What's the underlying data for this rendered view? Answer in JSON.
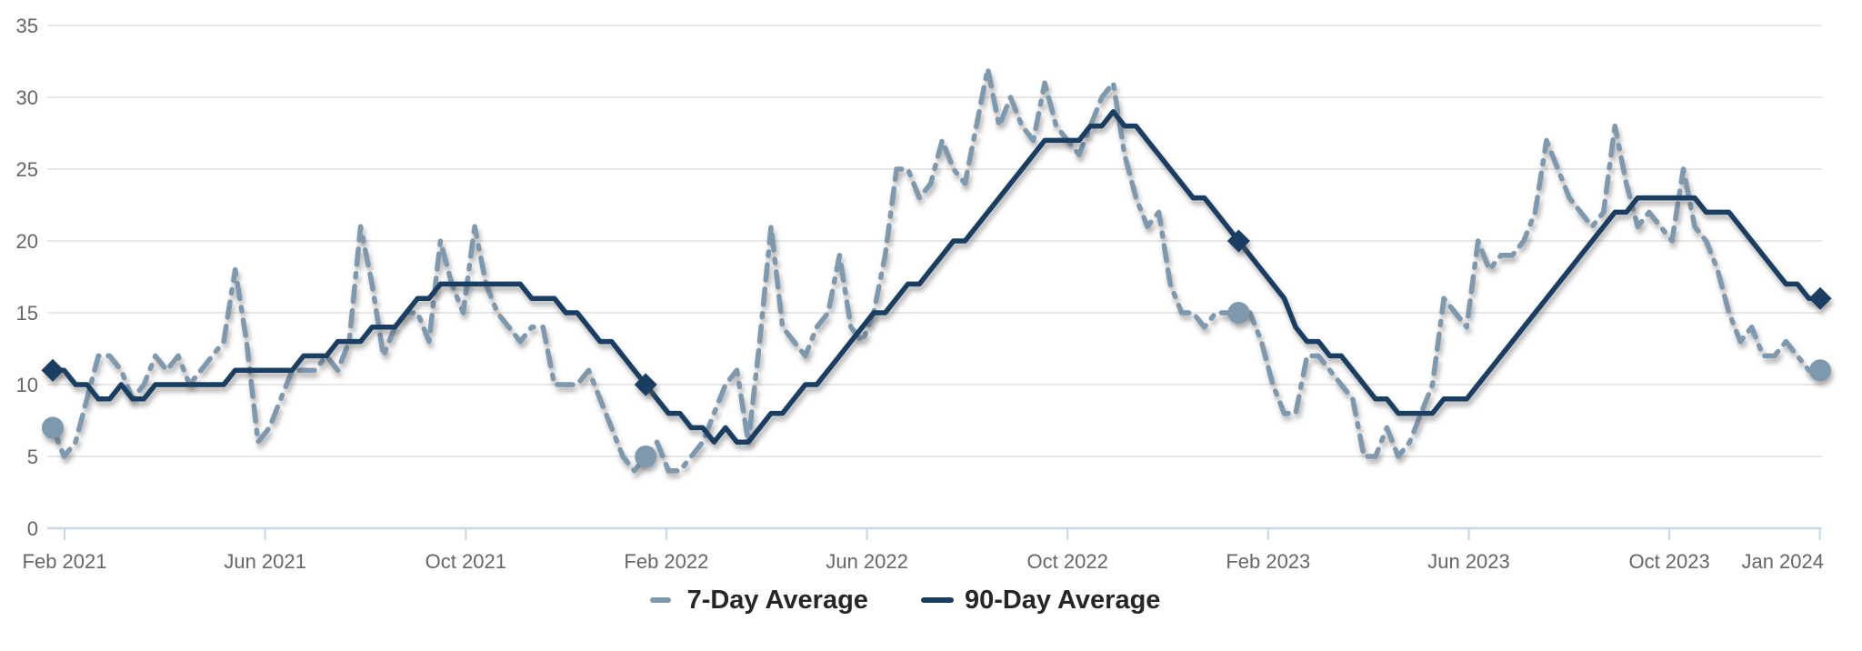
{
  "chart_data": {
    "type": "line",
    "title": "",
    "x_ticks": [
      {
        "label": "Feb 2021",
        "month": 0
      },
      {
        "label": "Jun 2021",
        "month": 4
      },
      {
        "label": "Oct 2021",
        "month": 8
      },
      {
        "label": "Feb 2022",
        "month": 12
      },
      {
        "label": "Jun 2022",
        "month": 16
      },
      {
        "label": "Oct 2022",
        "month": 20
      },
      {
        "label": "Feb 2023",
        "month": 24
      },
      {
        "label": "Jun 2023",
        "month": 28
      },
      {
        "label": "Oct 2023",
        "month": 32
      },
      {
        "label": "Jan 2024",
        "month": 35
      }
    ],
    "y_ticks": [
      0,
      5,
      10,
      15,
      20,
      25,
      30,
      35
    ],
    "ylim": [
      0,
      35
    ],
    "grid": "horizontal",
    "legend_position": "bottom-center",
    "series": [
      {
        "name": "7-Day Average",
        "id": "7-day-average",
        "color": "#7e98ae",
        "line_style": "dashed",
        "marker": "circle",
        "marker_indices": [
          0,
          52,
          104,
          155
        ],
        "values": [
          7,
          5,
          6,
          9,
          12,
          12,
          11,
          9,
          10,
          12,
          11,
          12,
          10,
          11,
          12,
          13,
          18,
          13,
          6,
          7,
          9,
          11,
          11,
          11,
          12,
          11,
          13,
          21,
          17,
          12,
          14,
          15,
          15,
          13,
          20,
          17,
          15,
          21,
          17,
          15,
          14,
          13,
          14,
          14,
          10,
          10,
          10,
          11,
          9,
          7,
          5,
          4,
          5,
          6,
          4,
          4,
          5,
          6,
          8,
          10,
          11,
          6,
          13,
          21,
          14,
          13,
          12,
          14,
          15,
          19,
          14,
          13,
          15,
          19,
          25,
          25,
          23,
          24,
          27,
          25,
          24,
          28,
          32,
          28,
          30,
          28,
          27,
          31,
          28,
          27,
          26,
          28,
          30,
          31,
          26,
          23,
          21,
          22,
          17,
          15,
          15,
          14,
          15,
          15,
          15,
          15,
          13,
          10,
          8,
          8,
          12,
          12,
          11,
          10,
          9,
          5,
          5,
          7,
          5,
          6,
          8,
          10,
          16,
          15,
          14,
          20,
          18,
          19,
          19,
          20,
          22,
          27,
          25,
          23,
          22,
          21,
          22,
          28,
          24,
          21,
          22,
          21,
          20,
          25,
          21,
          20,
          18,
          15,
          13,
          14,
          12,
          12,
          13,
          12,
          11,
          11
        ]
      },
      {
        "name": "90-Day Average",
        "id": "90-day-average",
        "color": "#1a3e62",
        "line_style": "solid",
        "marker": "diamond",
        "marker_indices": [
          0,
          52,
          104,
          155
        ],
        "values": [
          11,
          11,
          10,
          10,
          9,
          9,
          10,
          9,
          9,
          10,
          10,
          10,
          10,
          10,
          10,
          10,
          11,
          11,
          11,
          11,
          11,
          11,
          12,
          12,
          12,
          13,
          13,
          13,
          14,
          14,
          14,
          15,
          16,
          16,
          17,
          17,
          17,
          17,
          17,
          17,
          17,
          17,
          16,
          16,
          16,
          15,
          15,
          14,
          13,
          13,
          12,
          11,
          10,
          9,
          8,
          8,
          7,
          7,
          6,
          7,
          6,
          6,
          7,
          8,
          8,
          9,
          10,
          10,
          11,
          12,
          13,
          14,
          15,
          15,
          16,
          17,
          17,
          18,
          19,
          20,
          20,
          21,
          22,
          23,
          24,
          25,
          26,
          27,
          27,
          27,
          27,
          28,
          28,
          29,
          28,
          28,
          27,
          26,
          25,
          24,
          23,
          23,
          22,
          21,
          20,
          19,
          18,
          17,
          16,
          14,
          13,
          13,
          12,
          12,
          11,
          10,
          9,
          9,
          8,
          8,
          8,
          8,
          9,
          9,
          9,
          10,
          11,
          12,
          13,
          14,
          15,
          16,
          17,
          18,
          19,
          20,
          21,
          22,
          22,
          23,
          23,
          23,
          23,
          23,
          23,
          22,
          22,
          22,
          21,
          20,
          19,
          18,
          17,
          17,
          16,
          16
        ]
      }
    ]
  },
  "colors": {
    "background": "#ffffff",
    "grid_line": "#e8e8e8",
    "axis_line": "#c7d7e5",
    "axis_label": "#666666",
    "legend_text": "#262626",
    "series_7_day": "#7e98ae",
    "series_90_day": "#1a3e62"
  }
}
